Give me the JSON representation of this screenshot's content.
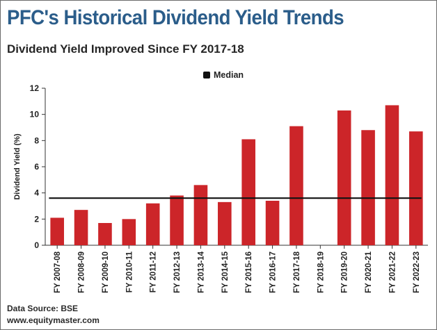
{
  "header": {
    "title": "PFC's Historical Dividend Yield Trends",
    "subtitle": "Dividend Yield Improved Since FY 2017-18"
  },
  "legend": {
    "median_label": "Median"
  },
  "footer": {
    "source": "Data Source: BSE",
    "website": "www.equitymaster.com"
  },
  "colors": {
    "bar": "#cc2529",
    "median": "#111111",
    "title": "#2b5d8a"
  },
  "chart_data": {
    "type": "bar",
    "ylabel": "Dividend Yield (%)",
    "xlabel": "",
    "ylim": [
      0,
      12
    ],
    "yticks": [
      0,
      2,
      4,
      6,
      8,
      10,
      12
    ],
    "categories": [
      "FY 2007-08",
      "FY 2008-09",
      "FY 2009-10",
      "FY 2010-11",
      "FY 2011-12",
      "FY 2012-13",
      "FY 2013-14",
      "FY 2014-15",
      "FY 2015-16",
      "FY 2016-17",
      "FY 2017-18",
      "FY 2018-19",
      "FY 2019-20",
      "FY 2020-21",
      "FY 2021-22",
      "FY 2022-23"
    ],
    "values": [
      2.1,
      2.7,
      1.7,
      2.0,
      3.2,
      3.8,
      4.6,
      3.3,
      8.1,
      3.4,
      9.1,
      0,
      10.3,
      8.8,
      10.7,
      8.7
    ],
    "median": 3.6,
    "legend_position": "top-center",
    "grid": false
  }
}
